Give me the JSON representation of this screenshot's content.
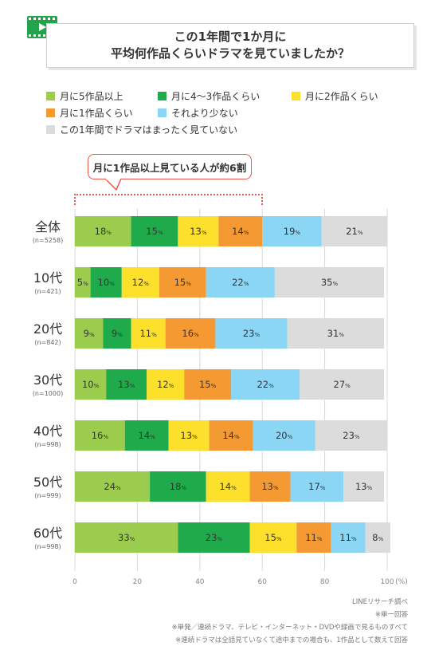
{
  "title": {
    "line1": "この1年間で1か月に",
    "line2": "平均何作品くらいドラマを見ていましたか？"
  },
  "callout": "月に1作品以上見ている人が約6割",
  "chart_data": {
    "type": "bar",
    "orientation": "horizontal-stacked",
    "xlim": [
      0,
      100
    ],
    "x_ticks": [
      "0",
      "20",
      "40",
      "60",
      "80",
      "100"
    ],
    "x_unit": "(%)",
    "grid": true,
    "legend_position": "top",
    "categories": [
      {
        "label": "全体",
        "n": "(n=5258)"
      },
      {
        "label": "10代",
        "n": "(n=421)"
      },
      {
        "label": "20代",
        "n": "(n=842)"
      },
      {
        "label": "30代",
        "n": "(n=1000)"
      },
      {
        "label": "40代",
        "n": "(n=998)"
      },
      {
        "label": "50代",
        "n": "(n=999)"
      },
      {
        "label": "60代",
        "n": "(n=998)"
      }
    ],
    "series": [
      {
        "name": "月に5作品以上",
        "color": "#9ccc4e",
        "values": [
          18,
          5,
          9,
          10,
          16,
          24,
          33
        ]
      },
      {
        "name": "月に4～3作品くらい",
        "color": "#1fab4b",
        "values": [
          15,
          10,
          9,
          13,
          14,
          18,
          23
        ]
      },
      {
        "name": "月に2作品くらい",
        "color": "#fde02b",
        "values": [
          13,
          12,
          11,
          12,
          13,
          14,
          15
        ]
      },
      {
        "name": "月に1作品くらい",
        "color": "#f59a33",
        "values": [
          14,
          15,
          16,
          15,
          14,
          13,
          11
        ]
      },
      {
        "name": "それより少ない",
        "color": "#8bd6f5",
        "values": [
          19,
          22,
          23,
          22,
          20,
          17,
          11
        ]
      },
      {
        "name": "この1年間でドラマはまったく見ていない",
        "color": "#dcdcdc",
        "values": [
          21,
          35,
          31,
          27,
          23,
          13,
          8
        ]
      }
    ],
    "value_suffix": "%"
  },
  "notes": [
    "LINEリサーチ調べ",
    "※単一回答",
    "※単発／連続ドラマ、テレビ・インターネット・DVDや録画で見るものすべて",
    "※連続ドラマは全話見ていなくて途中までの場合も、1作品として数えて回答"
  ]
}
